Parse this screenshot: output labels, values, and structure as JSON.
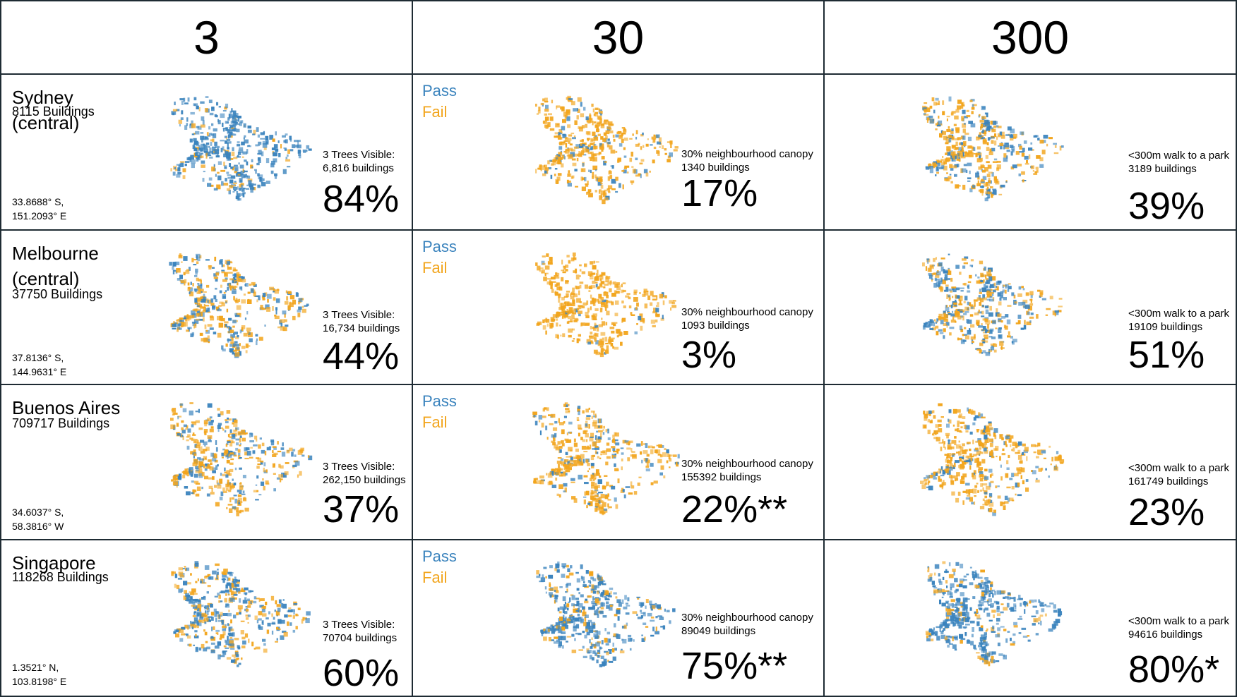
{
  "colors": {
    "pass": "#3a83bd",
    "fail": "#f2a51d",
    "grid": "#1e2b33"
  },
  "headers": [
    "3",
    "30",
    "300"
  ],
  "legend": {
    "pass": "Pass",
    "fail": "Fail"
  },
  "rows": [
    {
      "city": "Sydney (central)",
      "buildings": "8115 Buildings",
      "coord_lat": "33.8688° S,",
      "coord_lon": "151.2093° E",
      "c3": {
        "label": "3 Trees Visible:",
        "count": "6,816 buildings",
        "pct": "84%"
      },
      "c30": {
        "label": "30% neighbourhood canopy",
        "count": "1340 buildings",
        "pct": "17%"
      },
      "c300": {
        "label": "<300m walk to a park",
        "count": "3189 buildings",
        "pct": "39%"
      }
    },
    {
      "city": "Melbourne (central)",
      "buildings": "37750 Buildings",
      "coord_lat": "37.8136° S,",
      "coord_lon": "144.9631° E",
      "c3": {
        "label": "3 Trees Visible:",
        "count": "16,734 buildings",
        "pct": "44%"
      },
      "c30": {
        "label": "30% neighbourhood canopy",
        "count": "1093 buildings",
        "pct": "3%"
      },
      "c300": {
        "label": "<300m walk to a park",
        "count": "19109 buildings",
        "pct": "51%"
      }
    },
    {
      "city": "Buenos Aires",
      "buildings": "709717 Buildings",
      "coord_lat": "34.6037° S,",
      "coord_lon": "58.3816° W",
      "c3": {
        "label": "3 Trees Visible:",
        "count": "262,150 buildings",
        "pct": "37%"
      },
      "c30": {
        "label": "30% neighbourhood canopy",
        "count": "155392 buildings",
        "pct": "22%**"
      },
      "c300": {
        "label": "<300m walk to a park",
        "count": "161749 buildings",
        "pct": "23%"
      }
    },
    {
      "city": "Singapore",
      "buildings": "118268 Buildings",
      "coord_lat": "1.3521° N,",
      "coord_lon": "103.8198° E",
      "c3": {
        "label": "3 Trees Visible:",
        "count": "70704 buildings",
        "pct": "60%"
      },
      "c30": {
        "label": "30% neighbourhood canopy",
        "count": "89049 buildings",
        "pct": "75%**"
      },
      "c300": {
        "label": "<300m walk to a park",
        "count": "94616 buildings",
        "pct": "80%*"
      }
    }
  ]
}
